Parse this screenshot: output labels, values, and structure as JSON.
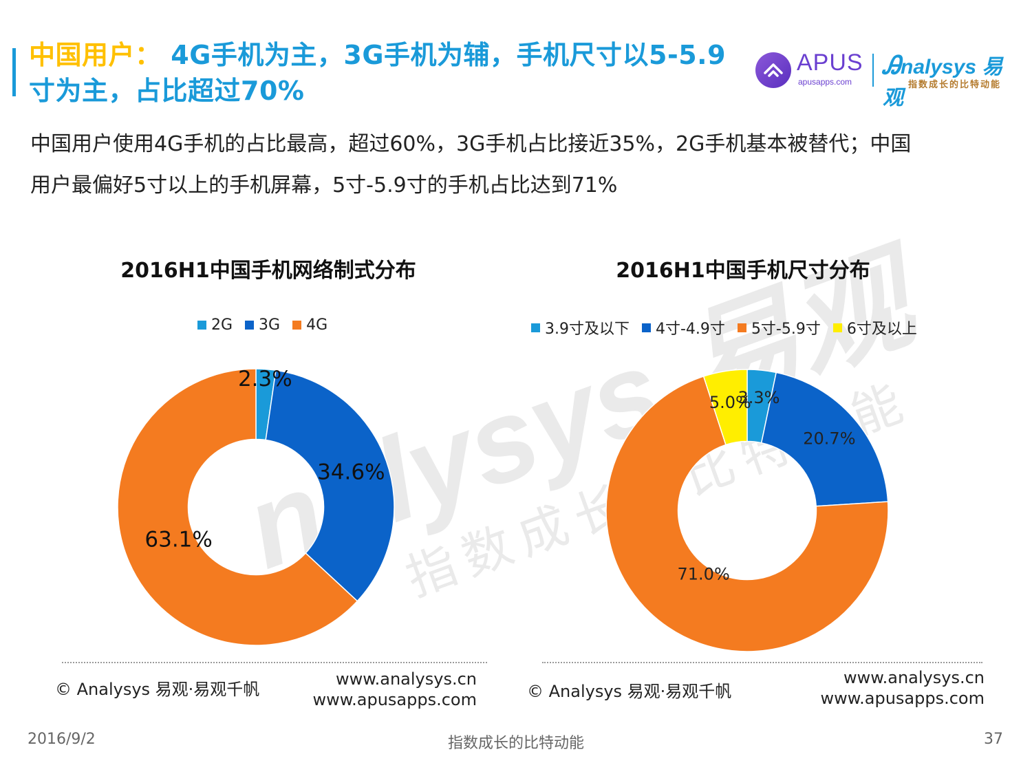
{
  "header": {
    "title_highlight": "中国用户：",
    "title_rest": "4G手机为主，3G手机为辅，手机尺寸以5-5.9寸为主，占比超过70%"
  },
  "brand": {
    "apus_name": "APUS",
    "apus_url": "apusapps.com",
    "analysys_name": "nalysys 易观",
    "analysys_sub": "指数成长的比特动能"
  },
  "subtitle": "中国用户使用4G手机的占比最高，超过60%，3G手机占比接近35%，2G手机基本被替代；中国用户最偏好5寸以上的手机屏幕，5寸-5.9寸的手机占比达到71%",
  "watermark": {
    "line1": "nalysys 易观",
    "line2": "指数成长的比特动能"
  },
  "chart_data": [
    {
      "type": "pie",
      "title": "2016H1中国手机网络制式分布",
      "categories": [
        "2G",
        "3G",
        "4G"
      ],
      "values": [
        2.3,
        34.6,
        63.1
      ],
      "labels": [
        "2.3%",
        "34.6%",
        "63.1%"
      ],
      "colors": [
        "#1a9ad9",
        "#0b63c9",
        "#f47b20"
      ],
      "donut": true,
      "legend": "top"
    },
    {
      "type": "pie",
      "title": "2016H1中国手机尺寸分布",
      "categories": [
        "3.9寸及以下",
        "4寸-4.9寸",
        "5寸-5.9寸",
        "6寸及以上"
      ],
      "values": [
        3.3,
        20.7,
        71.0,
        5.0
      ],
      "labels": [
        "3.3%",
        "20.7%",
        "71.0%",
        "5.0%"
      ],
      "colors": [
        "#1a9ad9",
        "#0b63c9",
        "#f47b20",
        "#ffee00"
      ],
      "donut": true,
      "legend": "top"
    }
  ],
  "sources": {
    "copyright": "© Analysys 易观·易观千帆",
    "url1": "www.analysys.cn",
    "url2": "www.apusapps.com"
  },
  "footer": {
    "date": "2016/9/2",
    "slogan": "指数成长的比特动能",
    "page": "37"
  }
}
